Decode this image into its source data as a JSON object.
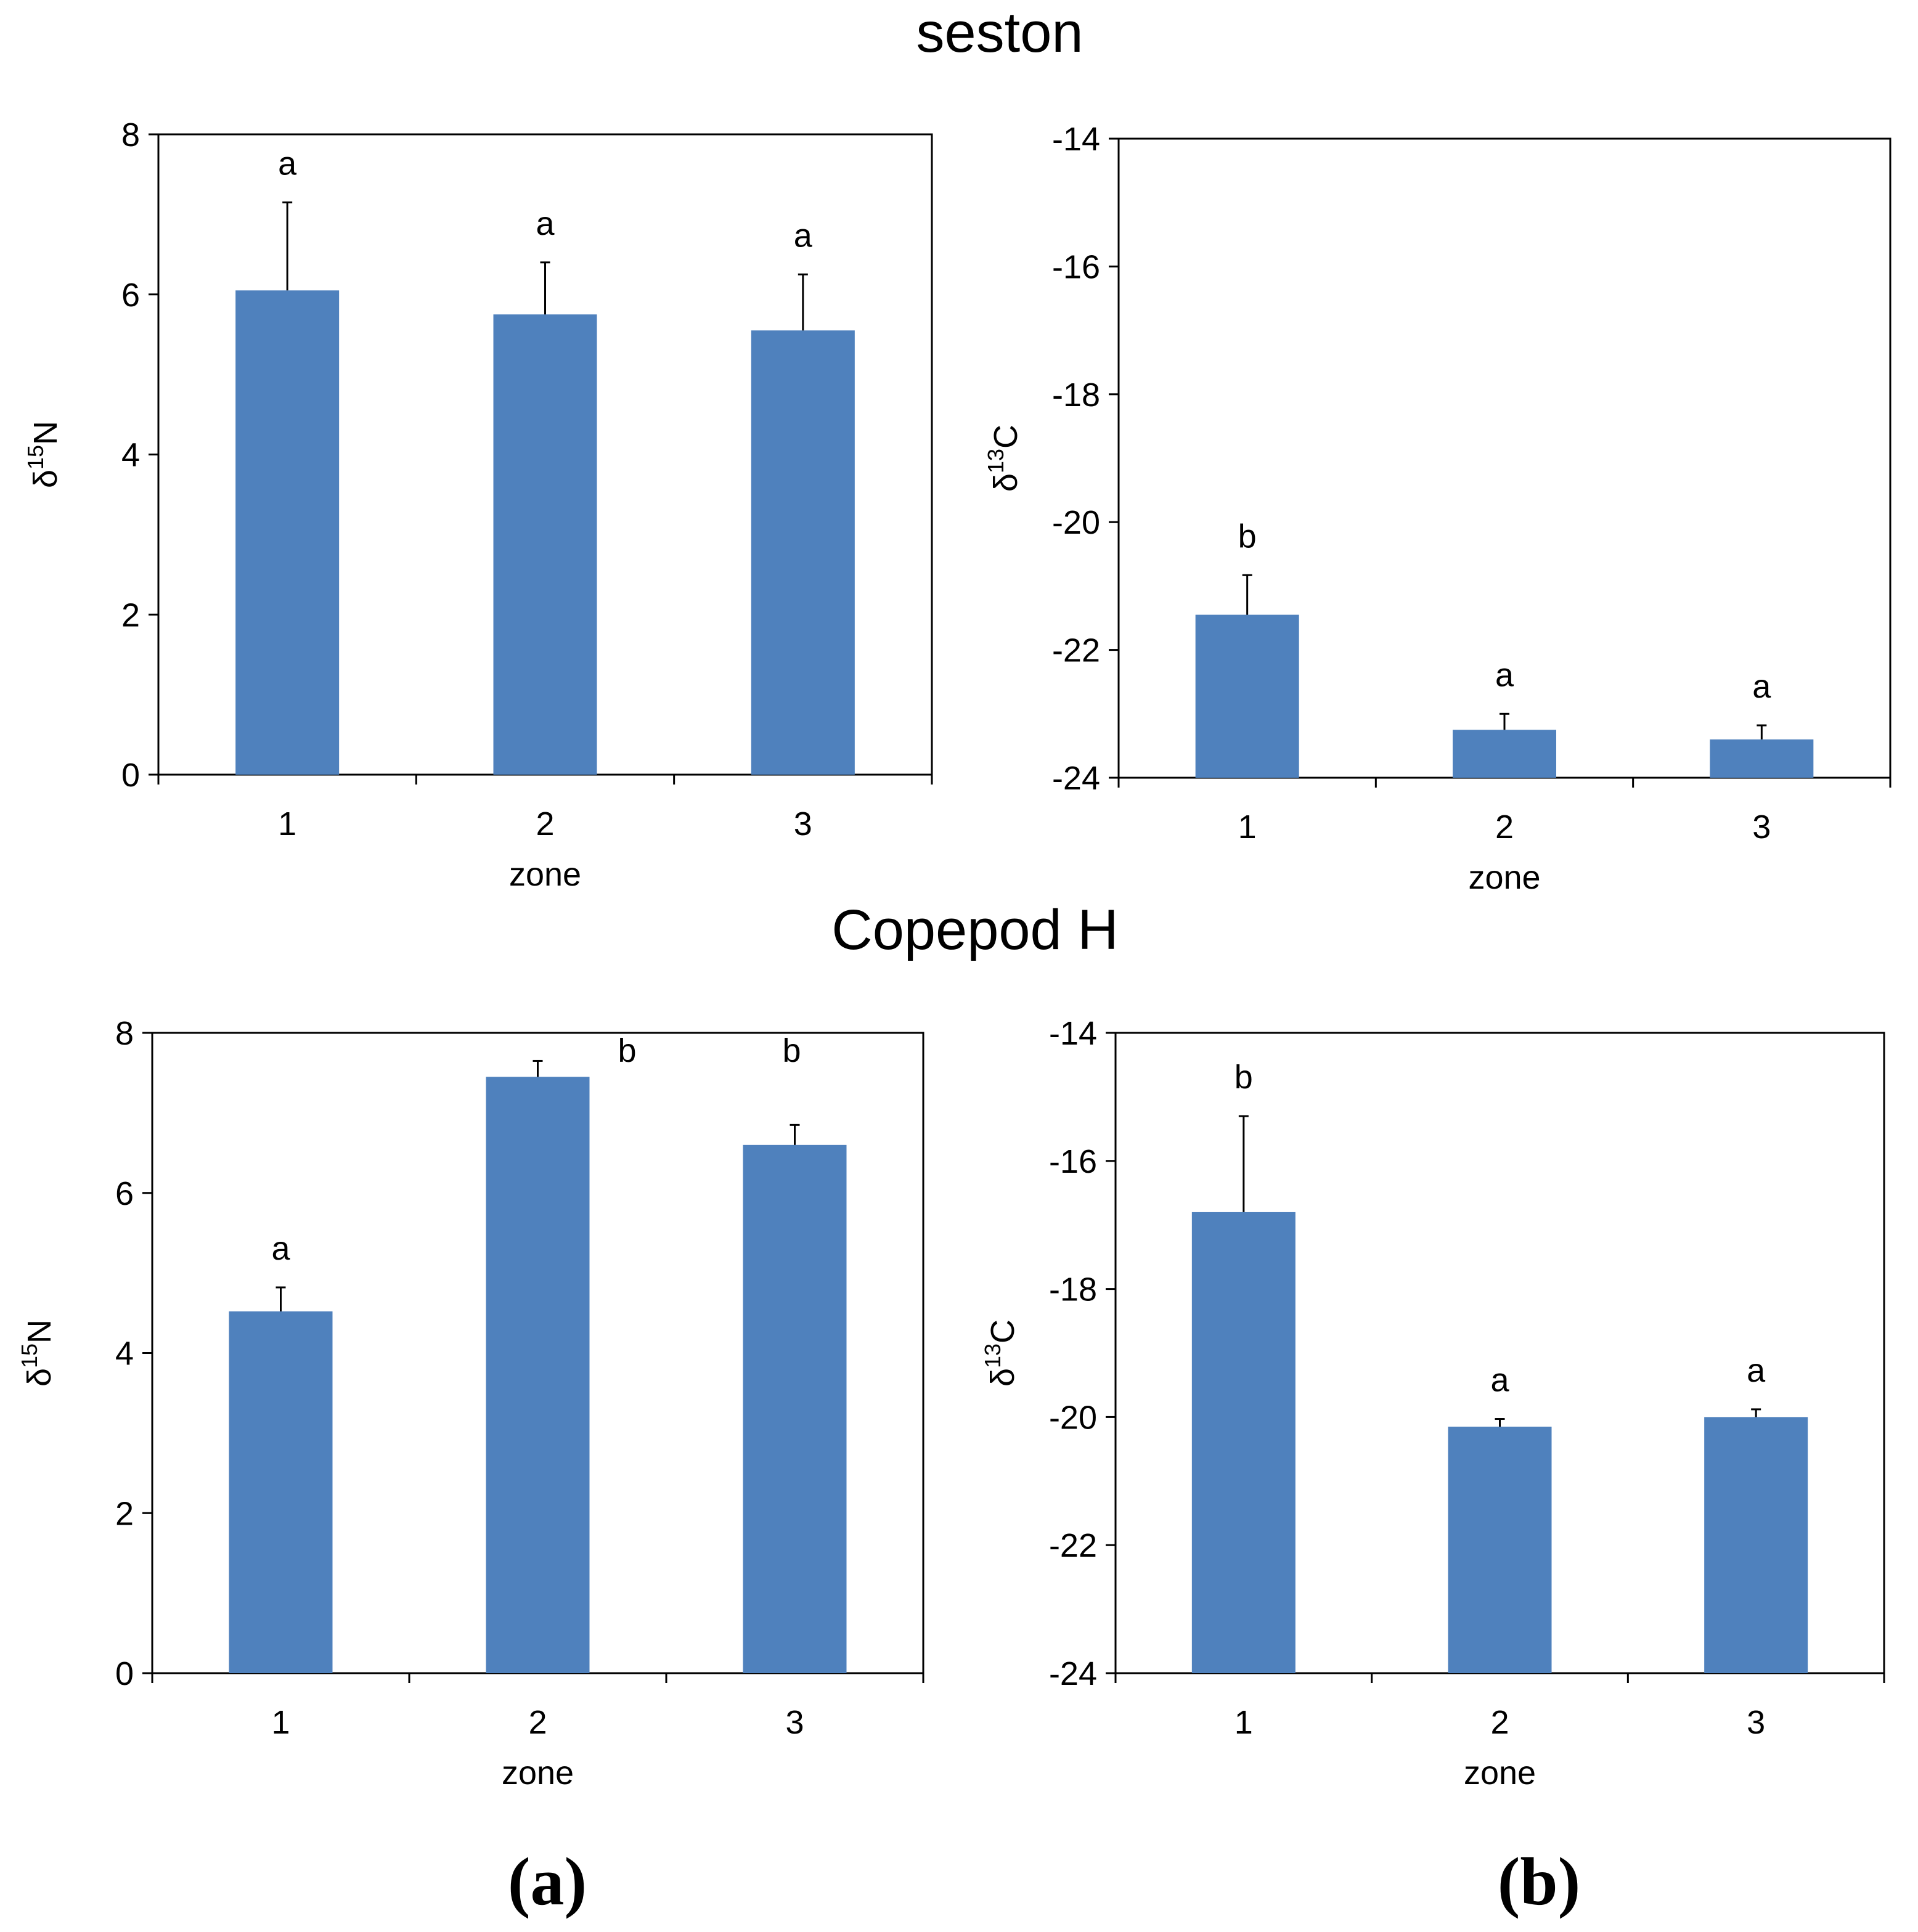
{
  "sections": {
    "top_title": "seston",
    "bottom_title": "Copepod H"
  },
  "panel_labels": {
    "a": "(a)",
    "b": "(b)"
  },
  "chart_data": [
    {
      "id": "seston-n",
      "type": "bar",
      "title": "",
      "xlabel": "zone",
      "ylabel": {
        "prefix": "δ",
        "sup": "15",
        "suffix": "N"
      },
      "categories": [
        "1",
        "2",
        "3"
      ],
      "values": [
        6.05,
        5.75,
        5.55
      ],
      "errors": [
        1.1,
        0.65,
        0.7
      ],
      "significance": [
        "a",
        "a",
        "a"
      ],
      "ylim": [
        0,
        8
      ],
      "yticks": [
        0,
        2,
        4,
        6,
        8
      ]
    },
    {
      "id": "seston-c",
      "type": "bar",
      "title": "",
      "xlabel": "zone",
      "ylabel": {
        "prefix": "δ",
        "sup": "13",
        "suffix": "C"
      },
      "categories": [
        "1",
        "2",
        "3"
      ],
      "values": [
        -21.45,
        -23.25,
        -23.4
      ],
      "errors": [
        0.62,
        0.25,
        0.22
      ],
      "significance": [
        "b",
        "a",
        "a"
      ],
      "ylim": [
        -24,
        -14
      ],
      "yticks": [
        -24,
        -22,
        -20,
        -18,
        -16,
        -14
      ]
    },
    {
      "id": "copepod-n",
      "type": "bar",
      "title": "",
      "xlabel": "zone",
      "ylabel": {
        "prefix": "δ",
        "sup": "15",
        "suffix": "N"
      },
      "categories": [
        "1",
        "2",
        "3"
      ],
      "values": [
        4.52,
        7.45,
        6.6
      ],
      "errors": [
        0.3,
        0.2,
        0.25
      ],
      "significance": [
        "a",
        "b",
        "b"
      ],
      "ylim": [
        0,
        8
      ],
      "yticks": [
        0,
        2,
        4,
        6,
        8
      ]
    },
    {
      "id": "copepod-c",
      "type": "bar",
      "title": "",
      "xlabel": "zone",
      "ylabel": {
        "prefix": "δ",
        "sup": "13",
        "suffix": "C"
      },
      "categories": [
        "1",
        "2",
        "3"
      ],
      "values": [
        -16.8,
        -20.15,
        -20.0
      ],
      "errors": [
        1.5,
        0.12,
        0.12
      ],
      "significance": [
        "b",
        "a",
        "a"
      ],
      "ylim": [
        -24,
        -14
      ],
      "yticks": [
        -24,
        -22,
        -20,
        -18,
        -16,
        -14
      ]
    }
  ]
}
